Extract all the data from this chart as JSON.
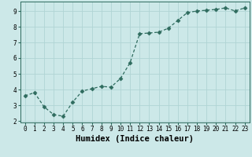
{
  "x": [
    0,
    1,
    2,
    3,
    4,
    5,
    6,
    7,
    8,
    9,
    10,
    11,
    12,
    13,
    14,
    15,
    16,
    17,
    18,
    19,
    20,
    21,
    22,
    23
  ],
  "y": [
    3.6,
    3.8,
    2.9,
    2.4,
    2.3,
    3.2,
    3.9,
    4.05,
    4.2,
    4.15,
    4.7,
    5.7,
    7.55,
    7.6,
    7.65,
    7.9,
    8.4,
    8.9,
    9.0,
    9.05,
    9.1,
    9.2,
    9.0,
    9.2
  ],
  "line_color": "#2e6b5e",
  "marker": "D",
  "marker_size": 2.5,
  "line_width": 0.9,
  "xlabel": "Humidex (Indice chaleur)",
  "xlim": [
    -0.5,
    23.5
  ],
  "ylim": [
    1.9,
    9.6
  ],
  "yticks": [
    2,
    3,
    4,
    5,
    6,
    7,
    8,
    9
  ],
  "xticks": [
    0,
    1,
    2,
    3,
    4,
    5,
    6,
    7,
    8,
    9,
    10,
    11,
    12,
    13,
    14,
    15,
    16,
    17,
    18,
    19,
    20,
    21,
    22,
    23
  ],
  "bg_color": "#cce8e8",
  "grid_color": "#b0d4d4",
  "tick_fontsize": 5.5,
  "xlabel_fontsize": 7.5,
  "xlabel_fontweight": "bold"
}
